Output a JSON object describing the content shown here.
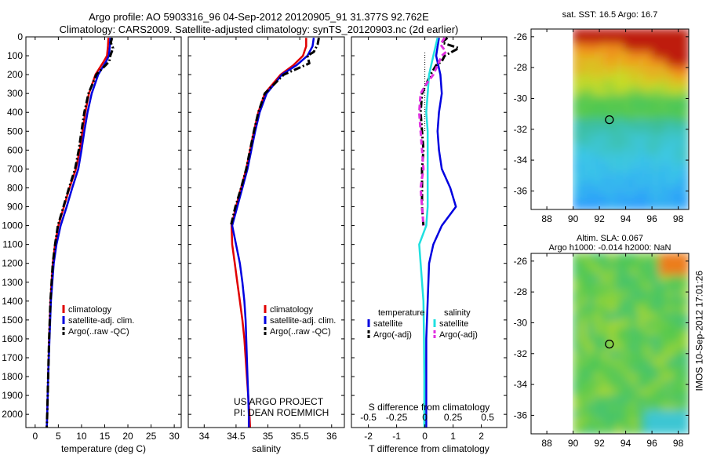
{
  "header": {
    "line1": "Argo profile: AO 5903316_96 04-Sep-2012 20120905_91 31.377S 92.762E",
    "line2": "Climatology: CARS2009. Satellite-adjusted climatology: synTS_20120903.nc (2d earlier)"
  },
  "side_label": "IMOS 10-Sep-2012 17:01:26",
  "credit": {
    "line1": "US ARGO PROJECT",
    "line2": "PI: DEAN ROEMMICH"
  },
  "colors": {
    "climatology": "#e00000",
    "satellite": "#0000e0",
    "argo": "#000000",
    "sat_salinity": "#20e0e0",
    "argo_salinity": "#e030e0"
  },
  "chart_data": [
    {
      "type": "line",
      "xlabel": "temperature (deg C)",
      "xlim": [
        -2,
        31.5
      ],
      "xticks": [
        0,
        5,
        10,
        15,
        20,
        25,
        30
      ],
      "ylim": [
        2070,
        0
      ],
      "yticks": [
        0,
        100,
        200,
        300,
        400,
        500,
        600,
        700,
        800,
        900,
        1000,
        1100,
        1200,
        1300,
        1400,
        1500,
        1600,
        1700,
        1800,
        1900,
        2000
      ],
      "legend": [
        "climatology",
        "satellite-adj. clim.",
        "Argo(..raw -QC)"
      ],
      "series": [
        {
          "key": "climatology",
          "depth": [
            5,
            50,
            100,
            130,
            200,
            300,
            400,
            500,
            600,
            700,
            800,
            900,
            1000,
            1100,
            1200,
            1400,
            1600,
            1800,
            2000,
            2070
          ],
          "values": [
            15.8,
            15.7,
            15.5,
            14.8,
            13.0,
            11.6,
            10.8,
            10.2,
            9.6,
            8.8,
            7.4,
            6.2,
            5.0,
            4.3,
            3.8,
            3.3,
            3.0,
            2.8,
            2.6,
            2.5
          ]
        },
        {
          "key": "satellite",
          "depth": [
            5,
            50,
            100,
            130,
            200,
            300,
            400,
            500,
            600,
            700,
            800,
            900,
            1000,
            1100,
            1200,
            1400,
            1600,
            1800,
            2000,
            2070
          ],
          "values": [
            16.2,
            16.1,
            15.9,
            15.3,
            13.6,
            12.2,
            11.3,
            10.6,
            10.0,
            9.3,
            8.0,
            6.8,
            5.5,
            4.6,
            4.0,
            3.4,
            3.1,
            2.8,
            2.6,
            2.5
          ]
        },
        {
          "key": "argo",
          "dashed": true,
          "depth": [
            5,
            30,
            60,
            100,
            130,
            200,
            300,
            400,
            500,
            600,
            700,
            800,
            900,
            1000,
            1100,
            1200,
            1400,
            1600,
            1800,
            2000,
            2070
          ],
          "values": [
            16.6,
            16.3,
            16.8,
            16.2,
            16.0,
            13.2,
            11.5,
            10.6,
            10.0,
            9.4,
            8.6,
            7.3,
            6.1,
            4.9,
            4.3,
            3.8,
            3.3,
            3.0,
            2.8,
            2.6,
            2.5
          ]
        }
      ]
    },
    {
      "type": "line",
      "xlabel": "salinity",
      "xlim": [
        33.75,
        36.2
      ],
      "xticks": [
        34,
        34.5,
        35,
        35.5,
        36
      ],
      "ylim": [
        2070,
        0
      ],
      "legend": [
        "climatology",
        "satellite-adj. clim.",
        "Argo(..raw -QC)"
      ],
      "series": [
        {
          "key": "climatology",
          "depth": [
            5,
            50,
            100,
            150,
            200,
            300,
            400,
            500,
            600,
            700,
            800,
            900,
            1000,
            1100,
            1200,
            1300,
            1400,
            1500,
            1600,
            1700,
            1800,
            1900,
            2000,
            2070
          ],
          "values": [
            35.6,
            35.6,
            35.55,
            35.4,
            35.2,
            34.95,
            34.85,
            34.78,
            34.72,
            34.66,
            34.58,
            34.5,
            34.43,
            34.44,
            34.48,
            34.52,
            34.56,
            34.6,
            34.63,
            34.65,
            34.67,
            34.69,
            34.71,
            34.72
          ]
        },
        {
          "key": "satellite",
          "depth": [
            5,
            50,
            100,
            150,
            200,
            300,
            400,
            500,
            600,
            700,
            800,
            900,
            1000,
            1100,
            1200,
            1300,
            1400,
            1500,
            1600,
            1700,
            1800,
            1900,
            2000,
            2070
          ],
          "values": [
            35.72,
            35.7,
            35.62,
            35.45,
            35.22,
            34.98,
            34.87,
            34.8,
            34.74,
            34.68,
            34.6,
            34.52,
            34.44,
            34.5,
            34.56,
            34.6,
            34.63,
            34.65,
            34.66,
            34.67,
            34.68,
            34.69,
            34.7,
            34.7
          ]
        },
        {
          "key": "argo",
          "dashed": true,
          "depth": [
            5,
            40,
            80,
            100,
            140,
            200,
            300,
            350,
            400,
            500,
            600,
            700,
            800,
            900,
            1000
          ],
          "values": [
            35.8,
            35.78,
            35.72,
            35.62,
            35.65,
            35.25,
            34.95,
            34.9,
            34.85,
            34.78,
            34.72,
            34.66,
            34.58,
            34.49,
            34.42
          ]
        }
      ]
    },
    {
      "type": "line",
      "xlabel": "T difference from climatology",
      "xlabel2": "S difference from climatology",
      "xlim": [
        -2.6,
        2.9
      ],
      "xticks": [
        -2,
        -1,
        0,
        1,
        2
      ],
      "xticks2_pos": [
        -2,
        -1,
        0,
        1,
        2
      ],
      "xticks2_labels": [
        "-0.5",
        "-0.25",
        "0",
        "0.25",
        "0.5"
      ],
      "ylim": [
        2070,
        0
      ],
      "legend_groups": [
        {
          "title": "temperature",
          "entries": [
            "satellite",
            "Argo(-adj)"
          ]
        },
        {
          "title": "salinity",
          "entries": [
            "satellite",
            "Argo(-adj)"
          ]
        }
      ],
      "series": [
        {
          "key": "sat_temp",
          "depth": [
            5,
            100,
            200,
            300,
            400,
            500,
            600,
            700,
            800,
            900,
            1000,
            1100,
            1200,
            1400,
            1600,
            1800,
            2000,
            2070
          ],
          "values": [
            0.5,
            0.4,
            0.55,
            0.6,
            0.5,
            0.45,
            0.5,
            0.6,
            0.9,
            1.1,
            0.6,
            0.3,
            0.15,
            0.1,
            0.05,
            0.05,
            0.05,
            0.05
          ]
        },
        {
          "key": "argo_temp",
          "dashed": true,
          "depth": [
            5,
            30,
            60,
            100,
            130,
            150,
            200,
            300,
            400,
            500,
            600,
            700,
            800,
            900,
            1000
          ],
          "values": [
            0.8,
            0.6,
            1.2,
            0.7,
            0.6,
            0.4,
            0.2,
            -0.1,
            -0.15,
            -0.1,
            -0.05,
            -0.1,
            -0.1,
            -0.1,
            -0.05
          ]
        },
        {
          "key": "sat_sal",
          "depth": [
            5,
            100,
            200,
            300,
            400,
            500,
            600,
            700,
            800,
            900,
            1000,
            1100,
            1200,
            1400,
            1600,
            1800,
            2000,
            2070
          ],
          "values": [
            0.45,
            0.3,
            0.15,
            0.1,
            0.05,
            0.1,
            0.1,
            0.1,
            0.1,
            0.1,
            0.05,
            -0.2,
            -0.15,
            -0.05,
            -0.03,
            -0.02,
            -0.02,
            -0.02
          ]
        },
        {
          "key": "argo_sal",
          "dashed": true,
          "depth": [
            5,
            40,
            80,
            100,
            200,
            250,
            300,
            400,
            500,
            600,
            700,
            800,
            900,
            1000
          ],
          "values": [
            0.7,
            0.55,
            0.75,
            0.6,
            0.3,
            0.05,
            -0.15,
            -0.2,
            -0.15,
            -0.1,
            -0.05,
            -0.15,
            -0.1,
            -0.05
          ]
        }
      ]
    },
    {
      "type": "heatmap",
      "title": "sat. SST: 16.5 Argo: 16.7",
      "xlim": [
        86.8,
        98.8
      ],
      "ylim": [
        -37.2,
        -25.5
      ],
      "xticks": [
        88,
        90,
        92,
        94,
        96,
        98
      ],
      "yticks": [
        -26,
        -28,
        -30,
        -32,
        -34,
        -36
      ],
      "data_x": [
        90,
        98.8
      ],
      "marker": [
        92.76,
        -31.38
      ]
    },
    {
      "type": "heatmap",
      "title": "Altim. SLA: 0.067",
      "title2": "Argo h1000: -0.014 h2000: NaN",
      "xlim": [
        86.8,
        98.8
      ],
      "ylim": [
        -37.2,
        -25.5
      ],
      "xticks": [
        88,
        90,
        92,
        94,
        96,
        98
      ],
      "yticks": [
        -26,
        -28,
        -30,
        -32,
        -34,
        -36
      ],
      "data_x": [
        90,
        98.8
      ],
      "marker": [
        92.76,
        -31.38
      ]
    }
  ]
}
